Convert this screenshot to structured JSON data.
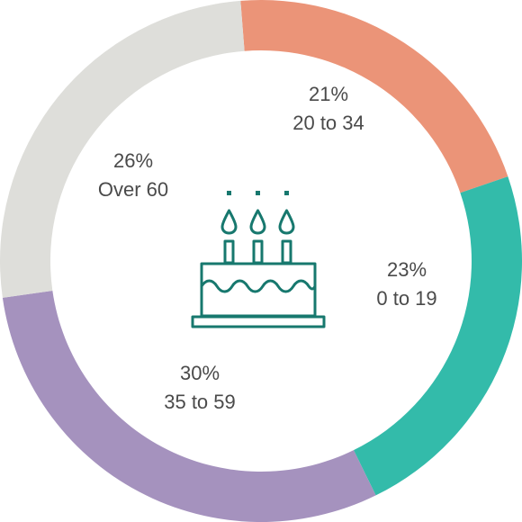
{
  "chart_data": {
    "type": "pie",
    "variant": "donut",
    "center_icon": "birthday-cake-icon",
    "slices": [
      {
        "value": 21,
        "percent_label": "21%",
        "category": "20 to 34",
        "color": "#EB9478"
      },
      {
        "value": 23,
        "percent_label": "23%",
        "category": "0 to 19",
        "color": "#33BBAA"
      },
      {
        "value": 30,
        "percent_label": "30%",
        "category": "35 to 59",
        "color": "#A592BE"
      },
      {
        "value": 26,
        "percent_label": "26%",
        "category": "Over 60",
        "color": "#DEDEDA"
      }
    ],
    "icon_color": "#17786E"
  }
}
